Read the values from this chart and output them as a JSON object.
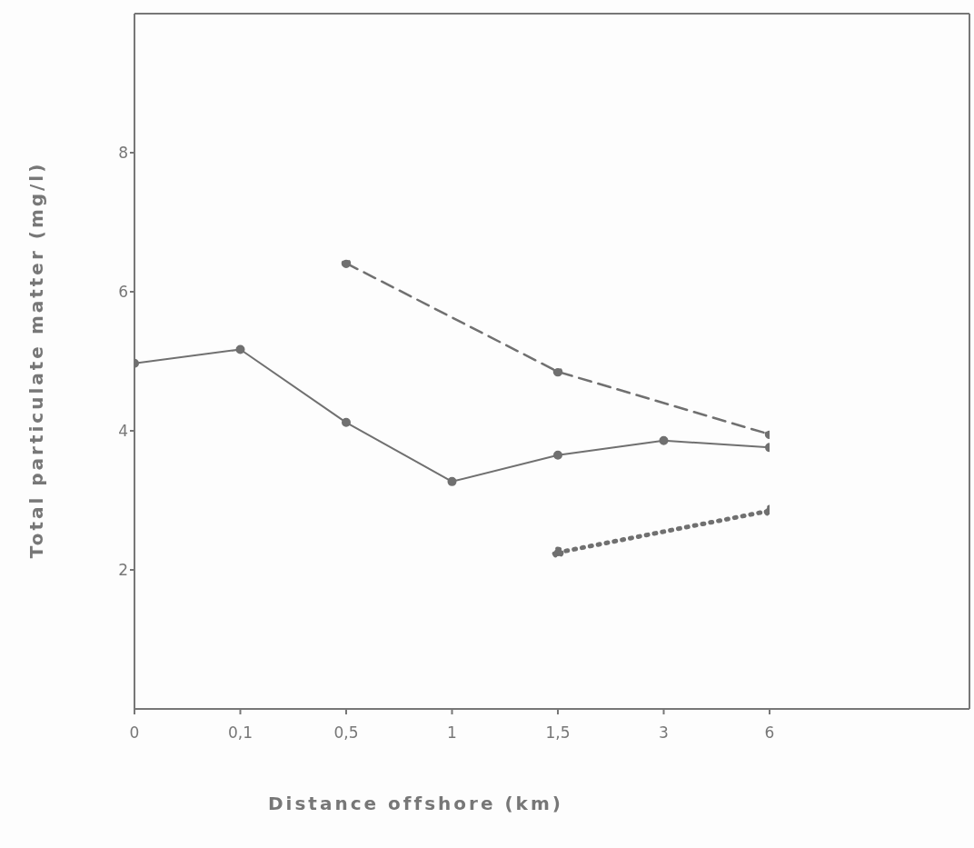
{
  "chart_data": {
    "type": "line",
    "xlabel": "Distance offshore (km)",
    "ylabel": "Total particulate matter (mg/l)",
    "categories": [
      "0",
      "0,1",
      "0,5",
      "1",
      "1,5",
      "3",
      "6"
    ],
    "ylim": [
      0,
      10
    ],
    "yticks": [
      {
        "value": 2,
        "label": "2"
      },
      {
        "value": 4,
        "label": "4"
      },
      {
        "value": 6,
        "label": "6"
      },
      {
        "value": 8,
        "label": "8"
      }
    ],
    "marker": "circle",
    "grid": false,
    "legend": false,
    "series": [
      {
        "color": "#707070",
        "line_style": "solid",
        "values": [
          4.97,
          5.17,
          4.12,
          3.27,
          3.65,
          3.86,
          3.76
        ]
      },
      {
        "color": "#707070",
        "line_style": "dashed",
        "values": [
          null,
          null,
          6.41,
          null,
          4.85,
          null,
          3.95
        ]
      },
      {
        "color": "#707070",
        "line_style": "dotted",
        "values": [
          null,
          null,
          null,
          null,
          2.25,
          null,
          2.85
        ]
      }
    ]
  }
}
